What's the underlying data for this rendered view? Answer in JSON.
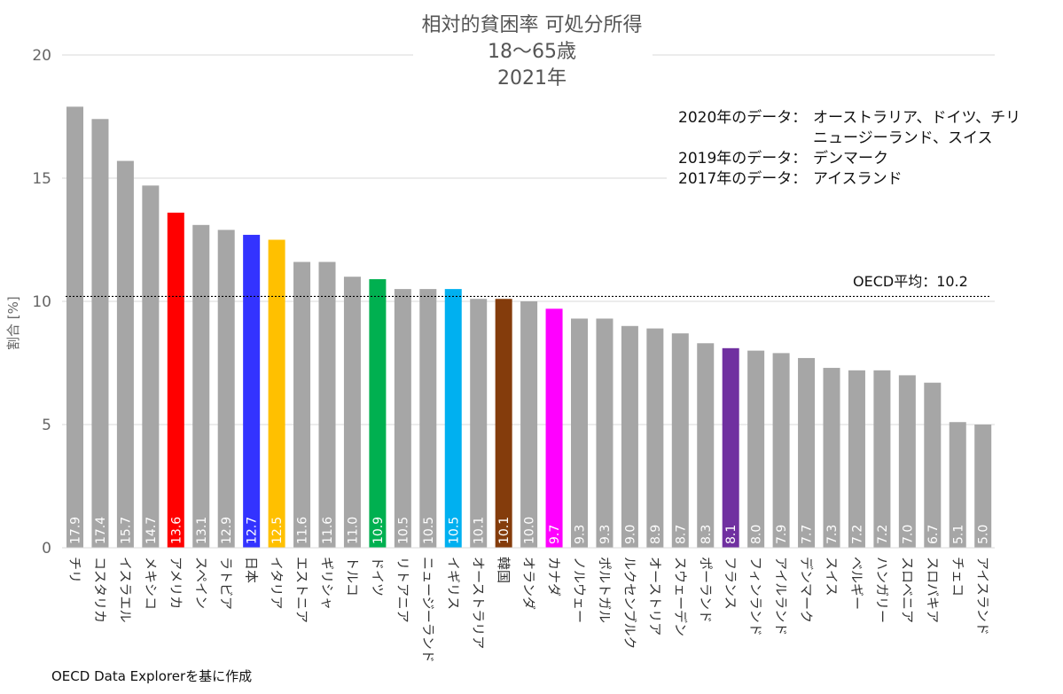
{
  "title": {
    "line1": "相対的貧困率 可処分所得",
    "line2": "18～65歳",
    "line3": "2021年"
  },
  "notes": [
    {
      "key": "2020年のデータ：",
      "value": "オーストラリア、ドイツ、チリ"
    },
    {
      "key": "",
      "value": "ニュージーランド、スイス"
    },
    {
      "key": "2019年のデータ：",
      "value": "デンマーク"
    },
    {
      "key": "2017年のデータ：",
      "value": "アイスランド"
    }
  ],
  "source": "OECD Data Explorerを基に作成",
  "chart_data": {
    "type": "bar",
    "title": "相対的貧困率 可処分所得 18～65歳 2021年",
    "xlabel": "",
    "ylabel": "割合 [%]",
    "ylim": [
      0,
      20
    ],
    "yticks": [
      0,
      5,
      10,
      15,
      20
    ],
    "grid": true,
    "reference_line": {
      "label": "OECD平均：10.2",
      "value": 10.2
    },
    "categories": [
      "チリ",
      "コスタリカ",
      "イスラエル",
      "メキシコ",
      "アメリカ",
      "スペイン",
      "ラトビア",
      "日本",
      "イタリア",
      "エストニア",
      "ギリシャ",
      "トルコ",
      "ドイツ",
      "リトアニア",
      "ニュージーランド",
      "イギリス",
      "オーストラリア",
      "韓国",
      "オランダ",
      "カナダ",
      "ノルウェー",
      "ポルトガル",
      "ルクセンブルク",
      "オーストリア",
      "スウェーデン",
      "ポーランド",
      "フランス",
      "フィンランド",
      "アイルランド",
      "デンマーク",
      "スイス",
      "ベルギー",
      "ハンガリー",
      "スロベニア",
      "スロバキア",
      "チェコ",
      "アイスランド"
    ],
    "values": [
      17.9,
      17.4,
      15.7,
      14.7,
      13.6,
      13.1,
      12.9,
      12.7,
      12.5,
      11.6,
      11.6,
      11.0,
      10.9,
      10.5,
      10.5,
      10.5,
      10.1,
      10.1,
      10.0,
      9.7,
      9.3,
      9.3,
      9.0,
      8.9,
      8.7,
      8.3,
      8.1,
      8.0,
      7.9,
      7.7,
      7.3,
      7.2,
      7.2,
      7.0,
      6.7,
      5.1,
      5.0
    ],
    "value_labels": [
      "17.9",
      "17.4",
      "15.7",
      "14.7",
      "13.6",
      "13.1",
      "12.9",
      "12.7",
      "12.5",
      "11.6",
      "11.6",
      "11.0",
      "10.9",
      "10.5",
      "10.5",
      "10.5",
      "10.1",
      "10.1",
      "10.0",
      "9.7",
      "9.3",
      "9.3",
      "9.0",
      "8.9",
      "8.7",
      "8.3",
      "8.1",
      "8.0",
      "7.9",
      "7.7",
      "7.3",
      "7.2",
      "7.2",
      "7.0",
      "6.7",
      "5.1",
      "5.0"
    ],
    "default_color": "#a6a6a6",
    "highlight_colors": {
      "アメリカ": "#ff0000",
      "日本": "#3333ff",
      "イタリア": "#ffc000",
      "ドイツ": "#00b050",
      "イギリス": "#00b0f0",
      "韓国": "#843c0c",
      "カナダ": "#ff00ff",
      "フランス": "#7030a0"
    }
  }
}
